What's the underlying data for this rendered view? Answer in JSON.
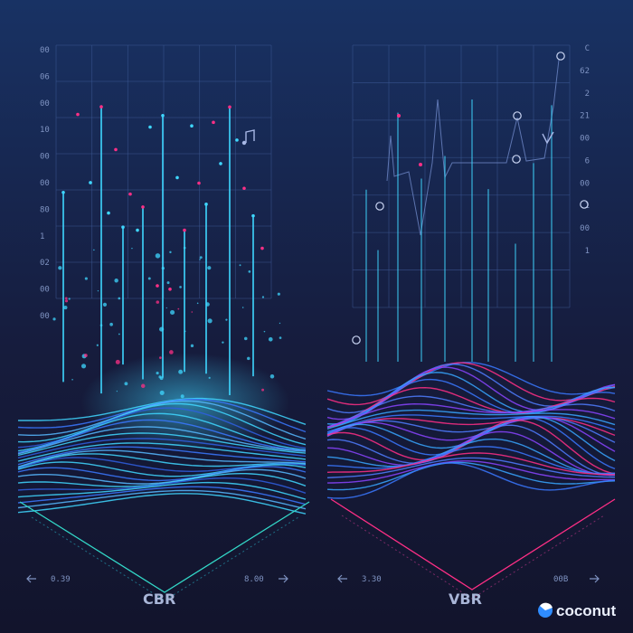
{
  "panels": [
    {
      "label": "CBR",
      "ticks": [
        "00",
        "06",
        "00",
        "10",
        "00",
        "00",
        "80",
        "1",
        "02",
        "00",
        "00"
      ],
      "range_left": "0.39",
      "range_right": "8.00"
    },
    {
      "label": "VBR",
      "ticks": [
        "C",
        "62",
        "2",
        "21",
        "00",
        "6",
        "00",
        "1",
        "00",
        "1"
      ],
      "range_left": "3.30",
      "range_right": "00B"
    }
  ],
  "brand": {
    "name": "coconut",
    "icon": "coconut-logo-icon"
  },
  "colors": {
    "background": "#141a33",
    "grid": "#3e5a96",
    "cyan": "#3fd7ff",
    "blue": "#3a78ff",
    "pink": "#ff2f86",
    "purple": "#8a44ff"
  }
}
